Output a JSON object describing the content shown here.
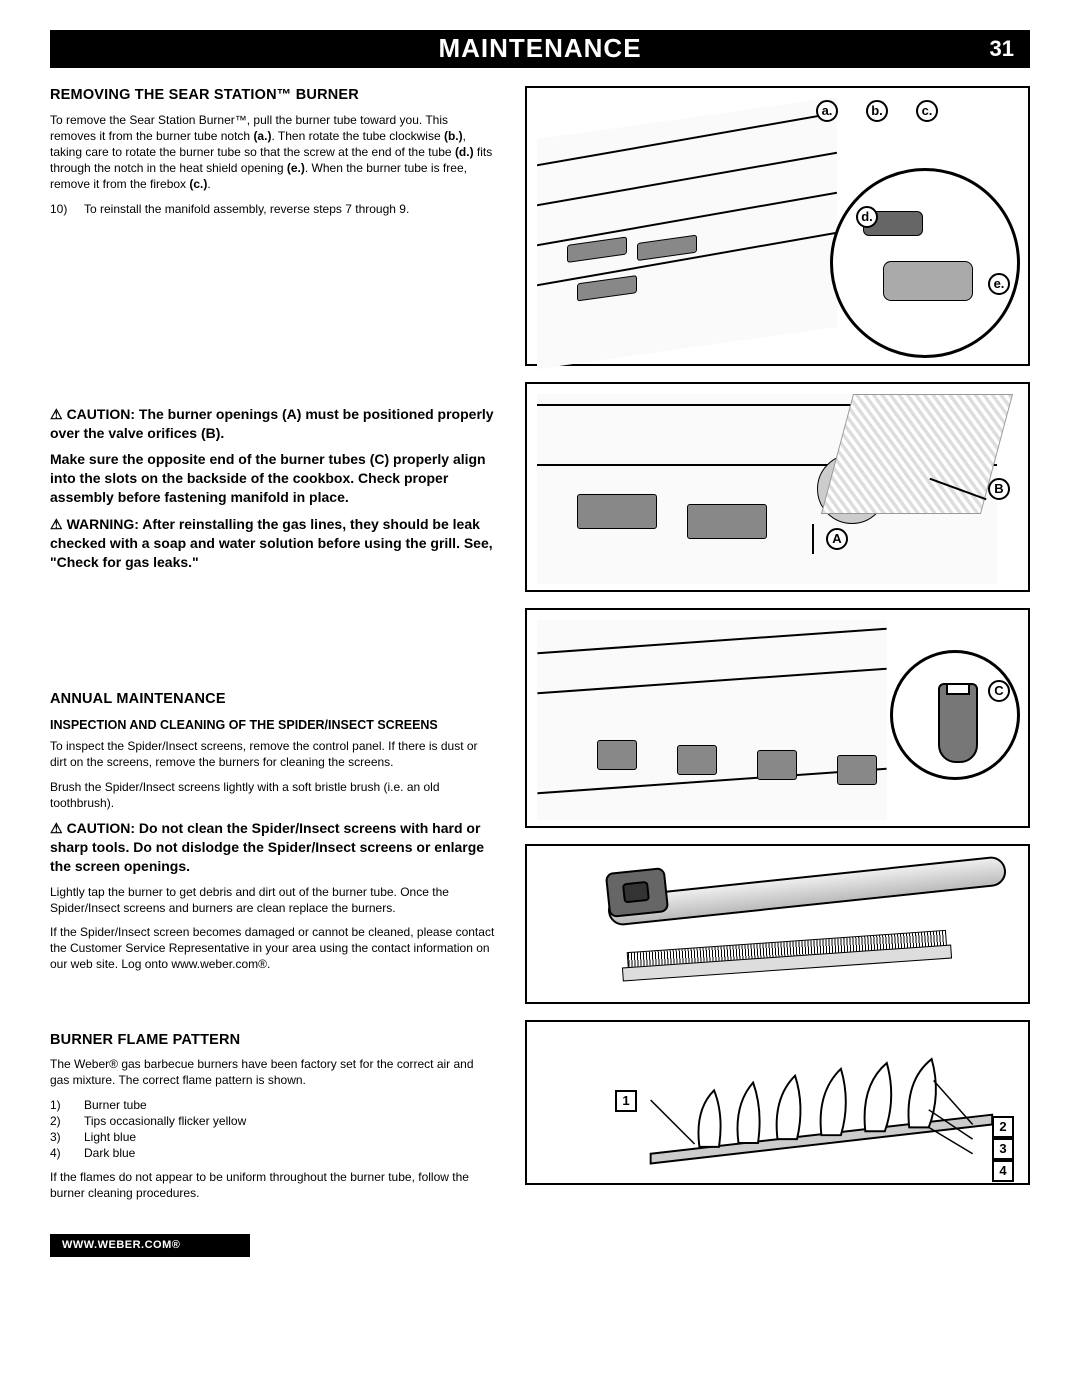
{
  "header": {
    "title": "MAINTENANCE",
    "page": "31"
  },
  "section1": {
    "head": "REMOVING THE SEAR STATION™ BURNER",
    "p1_a": "To remove the Sear Station Burner™, pull the burner tube toward you. This removes it from the burner tube notch ",
    "p1_b": "(a.)",
    "p1_c": ". Then rotate the tube clockwise ",
    "p1_d": "(b.)",
    "p1_e": ", taking care to rotate the burner tube so that the screw at the end of the tube ",
    "p1_f": "(d.)",
    "p1_g": " fits through the notch in the heat shield opening ",
    "p1_h": "(e.)",
    "p1_i": ". When the burner tube is free, remove it from the firebox ",
    "p1_j": "(c.)",
    "p1_k": ".",
    "step10_num": "10)",
    "step10_text": "To reinstall the manifold assembly, reverse steps 7 through 9."
  },
  "warnings": {
    "w1": "CAUTION: The burner openings (A) must be positioned properly over the valve orifices (B).",
    "w2": "Make sure the opposite end of the burner tubes (C) properly align into the slots on the backside of the cookbox. Check proper assembly before fastening manifold in place.",
    "w3": "WARNING: After reinstalling the gas lines, they should be leak checked with a soap and water solution before using the grill. See, \"Check for gas leaks.\""
  },
  "section2": {
    "head": "ANNUAL MAINTENANCE",
    "sub": "INSPECTION AND CLEANING OF THE SPIDER/INSECT SCREENS",
    "p1": "To inspect the Spider/Insect screens, remove the control panel. If there is dust or dirt on the screens, remove the burners for cleaning the screens.",
    "p2": "Brush the Spider/Insect screens lightly with a soft bristle brush (i.e. an old toothbrush).",
    "caution": "CAUTION: Do not clean the Spider/Insect screens with hard or sharp tools. Do not dislodge the Spider/Insect screens or enlarge the screen openings.",
    "p3": "Lightly tap the burner to get debris and dirt out of the burner tube. Once the Spider/Insect screens and burners are clean replace the burners.",
    "p4": "If the Spider/Insect screen becomes damaged or cannot be cleaned, please contact the Customer Service Representative in your area using the contact information on our web site. Log onto www.weber.com®."
  },
  "section3": {
    "head": "BURNER FLAME PATTERN",
    "p1": "The Weber® gas barbecue burners have been factory set for the correct air and gas mixture. The correct flame pattern is shown.",
    "items": [
      {
        "num": "1)",
        "label": "Burner tube"
      },
      {
        "num": "2)",
        "label": "Tips occasionally flicker yellow"
      },
      {
        "num": "3)",
        "label": "Light blue"
      },
      {
        "num": "4)",
        "label": "Dark blue"
      }
    ],
    "p2": "If the flames do not appear to be uniform throughout the burner tube, follow the burner cleaning procedures."
  },
  "callouts": {
    "fig1": {
      "a": "a.",
      "b": "b.",
      "c": "c.",
      "d": "d.",
      "e": "e."
    },
    "fig2": {
      "A": "A",
      "B": "B"
    },
    "fig3": {
      "C": "C"
    },
    "fig5": {
      "n1": "1",
      "n2": "2",
      "n3": "3",
      "n4": "4"
    }
  },
  "footer": "WWW.WEBER.COM®",
  "colors": {
    "black": "#000000",
    "white": "#ffffff",
    "grey": "#888888"
  }
}
